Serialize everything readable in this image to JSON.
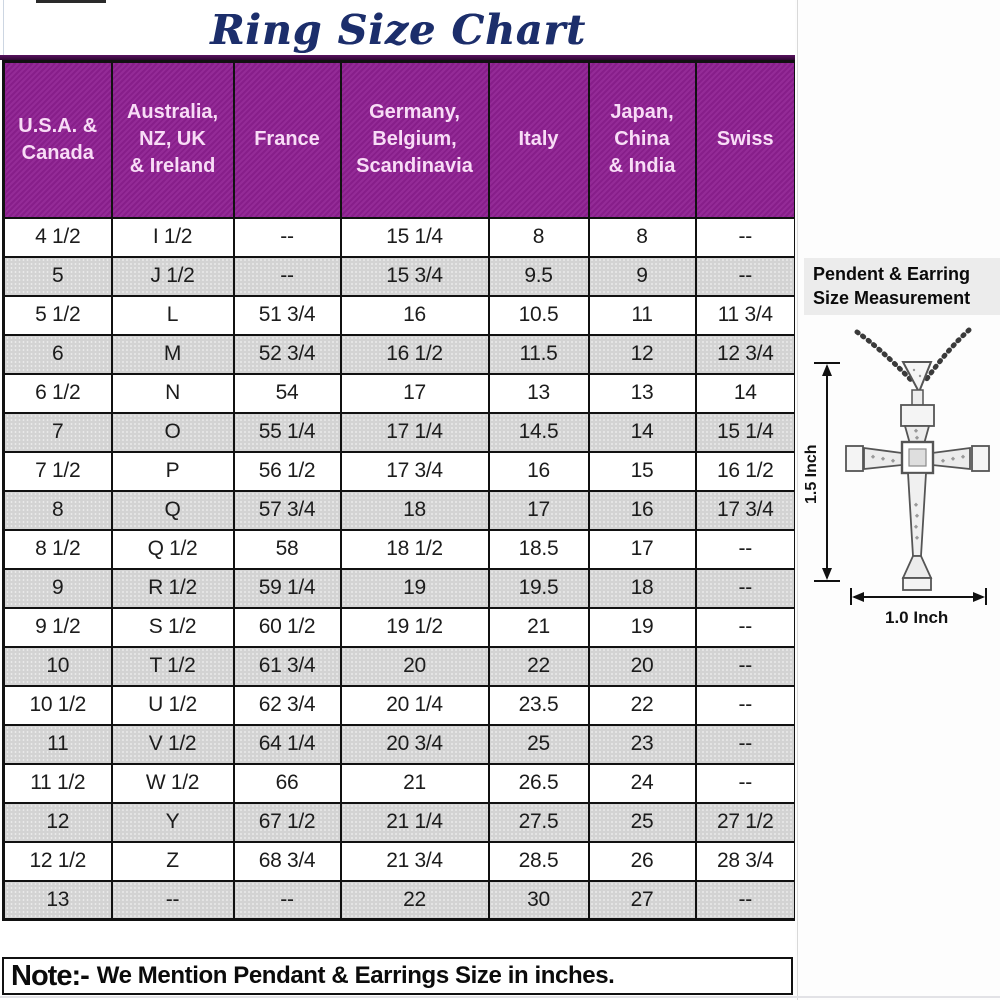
{
  "title": "Ring Size Chart",
  "table": {
    "headers": [
      "U.S.A. &\nCanada",
      "Australia,\nNZ, UK\n& Ireland",
      "France",
      "Germany,\nBelgium,\nScandinavia",
      "Italy",
      "Japan,\nChina\n& India",
      "Swiss"
    ],
    "rows": [
      [
        "4 1/2",
        "I 1/2",
        "--",
        "15 1/4",
        "8",
        "8",
        "--"
      ],
      [
        "5",
        "J 1/2",
        "--",
        "15 3/4",
        "9.5",
        "9",
        "--"
      ],
      [
        "5 1/2",
        "L",
        "51 3/4",
        "16",
        "10.5",
        "11",
        "11 3/4"
      ],
      [
        "6",
        "M",
        "52 3/4",
        "16 1/2",
        "11.5",
        "12",
        "12 3/4"
      ],
      [
        "6 1/2",
        "N",
        "54",
        "17",
        "13",
        "13",
        "14"
      ],
      [
        "7",
        "O",
        "55 1/4",
        "17 1/4",
        "14.5",
        "14",
        "15 1/4"
      ],
      [
        "7 1/2",
        "P",
        "56 1/2",
        "17 3/4",
        "16",
        "15",
        "16 1/2"
      ],
      [
        "8",
        "Q",
        "57 3/4",
        "18",
        "17",
        "16",
        "17 3/4"
      ],
      [
        "8 1/2",
        "Q 1/2",
        "58",
        "18 1/2",
        "18.5",
        "17",
        "--"
      ],
      [
        "9",
        "R 1/2",
        "59 1/4",
        "19",
        "19.5",
        "18",
        "--"
      ],
      [
        "9 1/2",
        "S 1/2",
        "60 1/2",
        "19 1/2",
        "21",
        "19",
        "--"
      ],
      [
        "10",
        "T 1/2",
        "61 3/4",
        "20",
        "22",
        "20",
        "--"
      ],
      [
        "10 1/2",
        "U 1/2",
        "62 3/4",
        "20 1/4",
        "23.5",
        "22",
        "--"
      ],
      [
        "11",
        "V 1/2",
        "64 1/4",
        "20 3/4",
        "25",
        "23",
        "--"
      ],
      [
        "11 1/2",
        "W 1/2",
        "66",
        "21",
        "26.5",
        "24",
        "--"
      ],
      [
        "12",
        "Y",
        "67 1/2",
        "21 1/4",
        "27.5",
        "25",
        "27 1/2"
      ],
      [
        "12 1/2",
        "Z",
        "68 3/4",
        "21 3/4",
        "28.5",
        "26",
        "28 3/4"
      ],
      [
        "13",
        "--",
        "--",
        "22",
        "30",
        "27",
        "--"
      ]
    ]
  },
  "note": {
    "label": "Note:-",
    "text": "We Mention Pendant & Earrings Size in inches."
  },
  "pendant_panel": {
    "heading": "Pendent & Earring\nSize Measurement",
    "height_label": "1.5 Inch",
    "width_label": "1.0 Inch",
    "graphic": "cross-pendant-necklace-diagram"
  },
  "colors": {
    "header_bg": "#8e2091",
    "header_text": "#f8dcf6",
    "alt_row_bg": "#d3d3d3",
    "title_text": "#1c2e6b",
    "border": "#111111",
    "note_text": "#0b0b0b"
  }
}
